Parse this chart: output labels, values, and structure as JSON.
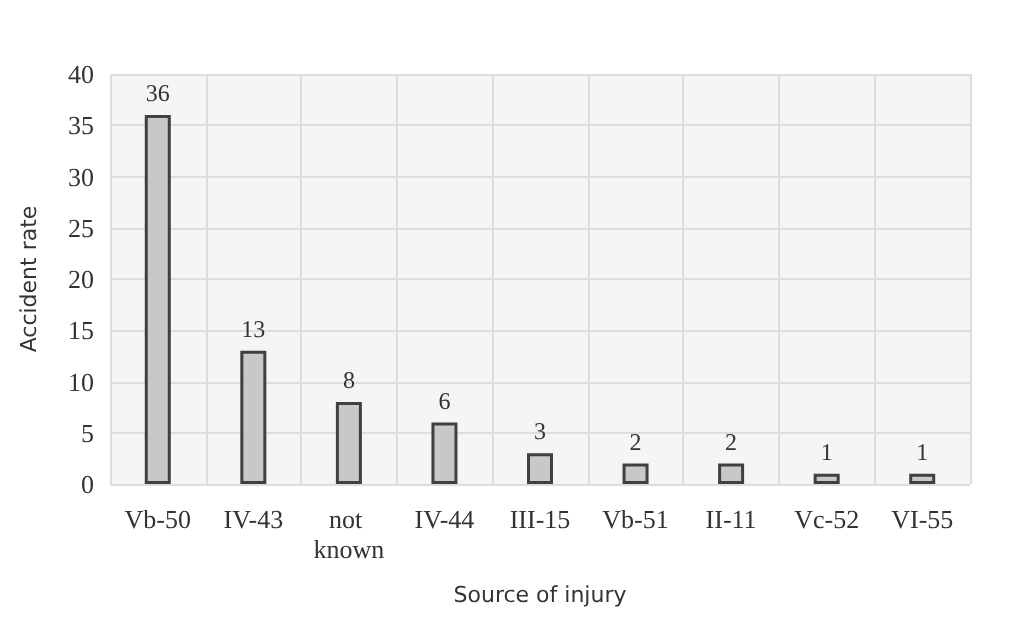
{
  "chart_data": {
    "type": "bar",
    "xlabel": "Source of injury",
    "ylabel": "Accident rate",
    "categories": [
      "Vb-50",
      "IV-43",
      "not known",
      "IV-44",
      "III-15",
      "Vb-51",
      "II-11",
      "Vc-52",
      "VI-55"
    ],
    "values": [
      36,
      13,
      8,
      6,
      3,
      2,
      2,
      1,
      1
    ],
    "color": "#c8c8c8",
    "ylim": [
      0,
      40
    ],
    "yticks": [
      0,
      5,
      10,
      15,
      20,
      25,
      30,
      35,
      40
    ],
    "grid": true,
    "data_labels": true
  }
}
